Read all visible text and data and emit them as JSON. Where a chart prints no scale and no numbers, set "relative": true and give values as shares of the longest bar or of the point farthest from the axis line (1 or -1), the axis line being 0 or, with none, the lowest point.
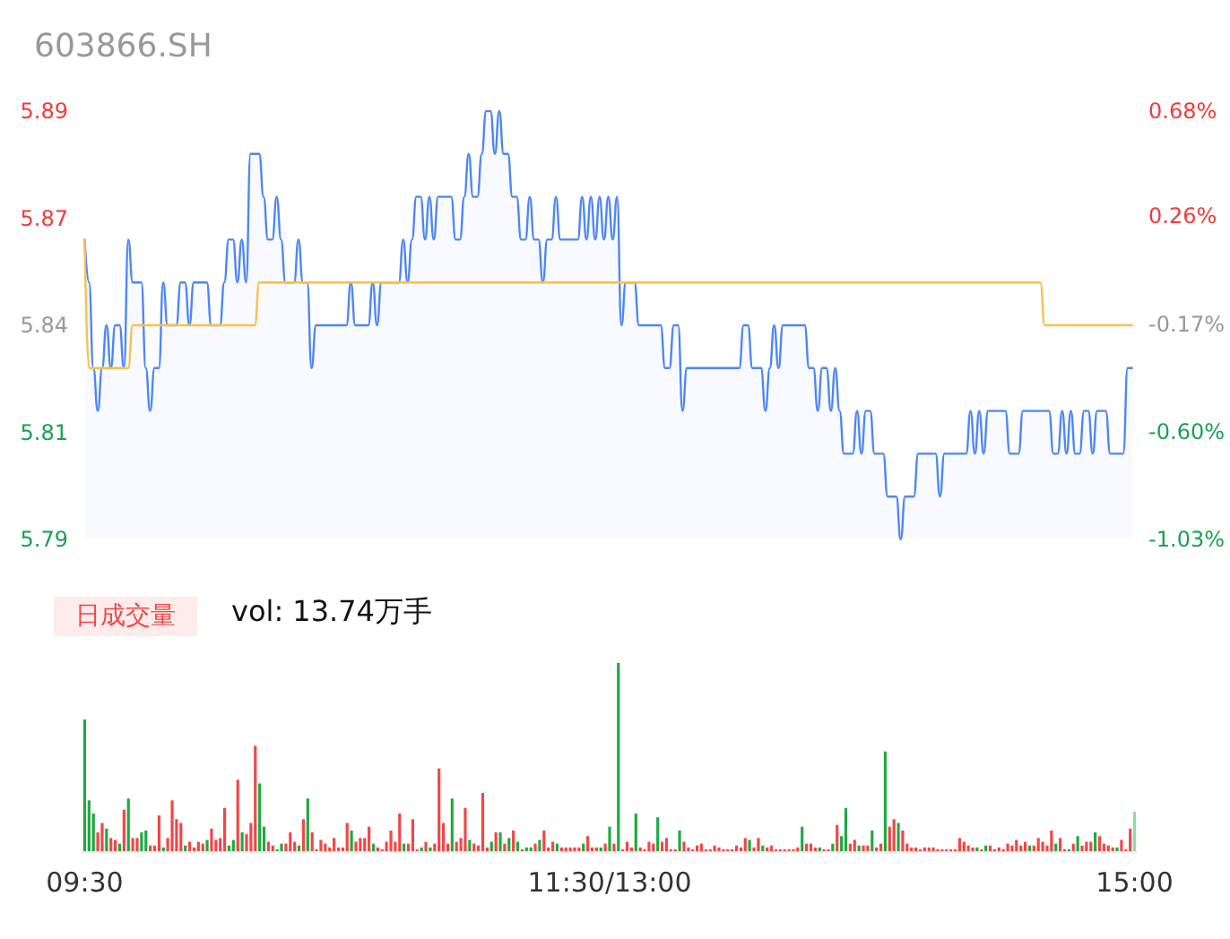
{
  "chart_data": [
    {
      "type": "line",
      "title": "603866.SH",
      "grid": false,
      "line_style": "solid",
      "categories": [
        null,
        null,
        null,
        null,
        null,
        null,
        null,
        null,
        null,
        null,
        null,
        null,
        null,
        null,
        null,
        null,
        null,
        null,
        null,
        null,
        null,
        null,
        null,
        null,
        null,
        null,
        null,
        null,
        null,
        null,
        null,
        null,
        null,
        null,
        null,
        null,
        null,
        null,
        null,
        null,
        null,
        null,
        null,
        null,
        null,
        null,
        null,
        null,
        null,
        null,
        null,
        null,
        null,
        null,
        null,
        null,
        null,
        null,
        null,
        null,
        null,
        null,
        null,
        null,
        null,
        null,
        null,
        null,
        null,
        null,
        null,
        null,
        null,
        null,
        null,
        null,
        null,
        null,
        null,
        null,
        null,
        null,
        null,
        null,
        null,
        null,
        null,
        null,
        null,
        null,
        null,
        null,
        null,
        null,
        null,
        null,
        null,
        null,
        null,
        null,
        null,
        null,
        null,
        null,
        null,
        null,
        null,
        null,
        null,
        null,
        null,
        null,
        null,
        null,
        null,
        null,
        null,
        null,
        null,
        null,
        null,
        null,
        null,
        null,
        null,
        null,
        null,
        null,
        null,
        null,
        null,
        null,
        null,
        null,
        null,
        null,
        null,
        null,
        null,
        null,
        null,
        null,
        null,
        null,
        null,
        null,
        null,
        null,
        null,
        null,
        null,
        null,
        null,
        null,
        null,
        null,
        null,
        null,
        null,
        null,
        null,
        null,
        null,
        null,
        null,
        null,
        null,
        null,
        null,
        null,
        null,
        null,
        null,
        null,
        null,
        null,
        null,
        null,
        null,
        null,
        null,
        null,
        null,
        null,
        null,
        null,
        null,
        null,
        null,
        null,
        null,
        null,
        null,
        null,
        null,
        null,
        null,
        null,
        null,
        null,
        null,
        null,
        null,
        null,
        null,
        null,
        null,
        null,
        null,
        null,
        null,
        null,
        null,
        null,
        null,
        null,
        null,
        null,
        null,
        null,
        null,
        null,
        null,
        null,
        null,
        null,
        null,
        null,
        null,
        null,
        null,
        null,
        null,
        null,
        null,
        null,
        null,
        null,
        null,
        null,
        null
      ],
      "ylim": [
        5.79,
        5.89
      ],
      "yticks": [
        {
          "value": 5.79,
          "label": "5.79"
        },
        {
          "value": 5.815,
          "label": "5.81"
        },
        {
          "value": 5.84,
          "label": "5.84"
        },
        {
          "value": 5.865,
          "label": "5.87"
        },
        {
          "value": 5.89,
          "label": "5.89"
        }
      ],
      "y2lim": [
        -1.03,
        0.68
      ],
      "y2ticks": [
        {
          "value": -1.03,
          "label": "-1.03%"
        },
        {
          "value": -0.6,
          "label": "-0.60%"
        },
        {
          "value": -0.17,
          "label": "-0.17%"
        },
        {
          "value": 0.26,
          "label": "0.26%"
        },
        {
          "value": 0.68,
          "label": "0.68%"
        }
      ],
      "series": [
        {
          "type": "area",
          "color": "#4e86f7",
          "values": [
            5.86,
            5.85,
            5.83,
            5.82,
            5.83,
            5.84,
            5.83,
            5.84,
            5.84,
            5.83,
            5.86,
            5.85,
            5.85,
            5.85,
            5.83,
            5.82,
            5.83,
            5.83,
            5.85,
            5.84,
            5.84,
            5.84,
            5.85,
            5.85,
            5.84,
            5.85,
            5.85,
            5.85,
            5.85,
            5.84,
            5.84,
            5.84,
            5.85,
            5.86,
            5.86,
            5.85,
            5.86,
            5.85,
            5.88,
            5.88,
            5.88,
            5.87,
            5.86,
            5.86,
            5.87,
            5.86,
            5.85,
            5.85,
            5.85,
            5.86,
            5.85,
            5.85,
            5.83,
            5.84,
            5.84,
            5.84,
            5.84,
            5.84,
            5.84,
            5.84,
            5.84,
            5.85,
            5.84,
            5.84,
            5.84,
            5.84,
            5.85,
            5.84,
            5.85,
            5.85,
            5.85,
            5.85,
            5.85,
            5.86,
            5.85,
            5.86,
            5.87,
            5.87,
            5.86,
            5.87,
            5.86,
            5.87,
            5.87,
            5.87,
            5.87,
            5.86,
            5.86,
            5.87,
            5.88,
            5.87,
            5.87,
            5.88,
            5.89,
            5.89,
            5.88,
            5.89,
            5.88,
            5.88,
            5.87,
            5.87,
            5.86,
            5.86,
            5.87,
            5.86,
            5.86,
            5.85,
            5.86,
            5.86,
            5.87,
            5.86,
            5.86,
            5.86,
            5.86,
            5.86,
            5.87,
            5.86,
            5.87,
            5.86,
            5.87,
            5.86,
            5.87,
            5.86,
            5.87,
            5.84,
            5.85,
            5.85,
            5.85,
            5.84,
            5.84,
            5.84,
            5.84,
            5.84,
            5.84,
            5.83,
            5.83,
            5.84,
            5.84,
            5.82,
            5.83,
            5.83,
            5.83,
            5.83,
            5.83,
            5.83,
            5.83,
            5.83,
            5.83,
            5.83,
            5.83,
            5.83,
            5.83,
            5.84,
            5.84,
            5.83,
            5.83,
            5.83,
            5.82,
            5.83,
            5.84,
            5.83,
            5.84,
            5.84,
            5.84,
            5.84,
            5.84,
            5.84,
            5.83,
            5.83,
            5.82,
            5.83,
            5.83,
            5.82,
            5.83,
            5.82,
            5.81,
            5.81,
            5.81,
            5.82,
            5.81,
            5.82,
            5.82,
            5.81,
            5.81,
            5.81,
            5.8,
            5.8,
            5.8,
            5.79,
            5.8,
            5.8,
            5.8,
            5.81,
            5.81,
            5.81,
            5.81,
            5.81,
            5.8,
            5.81,
            5.81,
            5.81,
            5.81,
            5.81,
            5.81,
            5.82,
            5.81,
            5.82,
            5.81,
            5.82,
            5.82,
            5.82,
            5.82,
            5.82,
            5.81,
            5.81,
            5.81,
            5.82,
            5.82,
            5.82,
            5.82,
            5.82,
            5.82,
            5.82,
            5.81,
            5.81,
            5.82,
            5.81,
            5.82,
            5.81,
            5.81,
            5.82,
            5.82,
            5.81,
            5.82,
            5.82,
            5.82,
            5.81,
            5.81,
            5.81,
            5.81,
            5.83,
            5.83
          ]
        },
        {
          "type": "line",
          "color": "#f8c248",
          "values": [
            5.86,
            5.83,
            5.83,
            5.83,
            5.83,
            5.83,
            5.83,
            5.83,
            5.83,
            5.83,
            5.83,
            5.84,
            5.84,
            5.84,
            5.84,
            5.84,
            5.84,
            5.84,
            5.84,
            5.84,
            5.84,
            5.84,
            5.84,
            5.84,
            5.84,
            5.84,
            5.84,
            5.84,
            5.84,
            5.84,
            5.84,
            5.84,
            5.84,
            5.84,
            5.84,
            5.84,
            5.84,
            5.84,
            5.84,
            5.84,
            5.85,
            5.85,
            5.85,
            5.85,
            5.85,
            5.85,
            5.85,
            5.85,
            5.85,
            5.85,
            5.85,
            5.85,
            5.85,
            5.85,
            5.85,
            5.85,
            5.85,
            5.85,
            5.85,
            5.85,
            5.85,
            5.85,
            5.85,
            5.85,
            5.85,
            5.85,
            5.85,
            5.85,
            5.85,
            5.85,
            5.85,
            5.85,
            5.85,
            5.85,
            5.85,
            5.85,
            5.85,
            5.85,
            5.85,
            5.85,
            5.85,
            5.85,
            5.85,
            5.85,
            5.85,
            5.85,
            5.85,
            5.85,
            5.85,
            5.85,
            5.85,
            5.85,
            5.85,
            5.85,
            5.85,
            5.85,
            5.85,
            5.85,
            5.85,
            5.85,
            5.85,
            5.85,
            5.85,
            5.85,
            5.85,
            5.85,
            5.85,
            5.85,
            5.85,
            5.85,
            5.85,
            5.85,
            5.85,
            5.85,
            5.85,
            5.85,
            5.85,
            5.85,
            5.85,
            5.85,
            5.85,
            5.85,
            5.85,
            5.85,
            5.85,
            5.85,
            5.85,
            5.85,
            5.85,
            5.85,
            5.85,
            5.85,
            5.85,
            5.85,
            5.85,
            5.85,
            5.85,
            5.85,
            5.85,
            5.85,
            5.85,
            5.85,
            5.85,
            5.85,
            5.85,
            5.85,
            5.85,
            5.85,
            5.85,
            5.85,
            5.85,
            5.85,
            5.85,
            5.85,
            5.85,
            5.85,
            5.85,
            5.85,
            5.85,
            5.85,
            5.85,
            5.85,
            5.85,
            5.85,
            5.85,
            5.85,
            5.85,
            5.85,
            5.85,
            5.85,
            5.85,
            5.85,
            5.85,
            5.85,
            5.85,
            5.85,
            5.85,
            5.85,
            5.85,
            5.85,
            5.85,
            5.85,
            5.85,
            5.85,
            5.85,
            5.85,
            5.85,
            5.85,
            5.85,
            5.85,
            5.85,
            5.85,
            5.85,
            5.85,
            5.85,
            5.85,
            5.85,
            5.85,
            5.85,
            5.85,
            5.85,
            5.85,
            5.85,
            5.85,
            5.85,
            5.85,
            5.85,
            5.85,
            5.85,
            5.85,
            5.85,
            5.85,
            5.85,
            5.85,
            5.85,
            5.85,
            5.85,
            5.85,
            5.85,
            5.85,
            5.84,
            5.84,
            5.84,
            5.84,
            5.84,
            5.84,
            5.84,
            5.84,
            5.84,
            5.84,
            5.84,
            5.84,
            5.84,
            5.84,
            5.84,
            5.84,
            5.84,
            5.84,
            5.84,
            5.84,
            5.84
          ]
        }
      ]
    },
    {
      "type": "bar",
      "relative": true,
      "grid": false,
      "tick_labels": "x",
      "annotations": [
        "日成交量",
        "vol: 13.74万手"
      ],
      "categories": [
        "09:30",
        null,
        null,
        null,
        null,
        null,
        null,
        null,
        null,
        null,
        null,
        null,
        null,
        null,
        null,
        null,
        null,
        null,
        null,
        null,
        null,
        null,
        null,
        null,
        null,
        null,
        null,
        null,
        null,
        null,
        null,
        null,
        null,
        null,
        null,
        null,
        null,
        null,
        null,
        null,
        null,
        null,
        null,
        null,
        null,
        null,
        null,
        null,
        null,
        null,
        null,
        null,
        null,
        null,
        null,
        null,
        null,
        null,
        null,
        null,
        null,
        null,
        null,
        null,
        null,
        null,
        null,
        null,
        null,
        null,
        null,
        null,
        null,
        null,
        null,
        null,
        null,
        null,
        null,
        null,
        null,
        null,
        null,
        null,
        null,
        null,
        null,
        null,
        null,
        null,
        null,
        null,
        null,
        null,
        null,
        null,
        null,
        null,
        null,
        null,
        null,
        null,
        null,
        null,
        null,
        null,
        null,
        null,
        null,
        null,
        null,
        null,
        null,
        null,
        null,
        null,
        null,
        null,
        null,
        null,
        "11:30/13:00",
        null,
        null,
        null,
        null,
        null,
        null,
        null,
        null,
        null,
        null,
        null,
        null,
        null,
        null,
        null,
        null,
        null,
        null,
        null,
        null,
        null,
        null,
        null,
        null,
        null,
        null,
        null,
        null,
        null,
        null,
        null,
        null,
        null,
        null,
        null,
        null,
        null,
        null,
        null,
        null,
        null,
        null,
        null,
        null,
        null,
        null,
        null,
        null,
        null,
        null,
        null,
        null,
        null,
        null,
        null,
        null,
        null,
        null,
        null,
        null,
        null,
        null,
        null,
        null,
        null,
        null,
        null,
        null,
        null,
        null,
        null,
        null,
        null,
        null,
        null,
        null,
        null,
        null,
        null,
        null,
        null,
        null,
        null,
        null,
        null,
        null,
        null,
        null,
        null,
        null,
        null,
        null,
        null,
        null,
        null,
        null,
        null,
        null,
        null,
        null,
        null,
        null,
        null,
        null,
        null,
        null,
        null,
        null,
        null,
        null,
        null,
        null,
        null,
        null,
        null,
        null,
        null,
        null,
        null,
        "15:00"
      ],
      "values": [
        0.7,
        0.27,
        0.2,
        0.1,
        0.15,
        0.12,
        0.07,
        0.06,
        0.04,
        0.22,
        0.28,
        0.07,
        0.07,
        0.1,
        0.11,
        0.03,
        0.03,
        0.19,
        0.02,
        0.07,
        0.27,
        0.17,
        0.15,
        0.03,
        0.05,
        0.02,
        0.05,
        0.04,
        0.06,
        0.12,
        0.06,
        0.07,
        0.23,
        0.03,
        0.06,
        0.38,
        0.1,
        0.09,
        0.15,
        0.56,
        0.36,
        0.13,
        0.05,
        0.03,
        0.01,
        0.04,
        0.04,
        0.1,
        0.05,
        0.03,
        0.17,
        0.28,
        0.1,
        0.01,
        0.06,
        0.04,
        0.02,
        0.07,
        0.02,
        0.02,
        0.15,
        0.11,
        0.05,
        0.07,
        0.07,
        0.13,
        0.04,
        0.02,
        0.01,
        0.05,
        0.11,
        0.05,
        0.2,
        0.04,
        0.04,
        0.17,
        0.01,
        0.02,
        0.05,
        0.02,
        0.04,
        0.44,
        0.15,
        0.04,
        0.28,
        0.05,
        0.07,
        0.23,
        0.06,
        0.04,
        0.03,
        0.31,
        0.02,
        0.05,
        0.1,
        0.1,
        0.04,
        0.07,
        0.11,
        0.05,
        0.01,
        0.02,
        0.02,
        0.04,
        0.06,
        0.11,
        0.02,
        0.05,
        0.04,
        0.02,
        0.02,
        0.02,
        0.02,
        0.02,
        0.04,
        0.08,
        0.02,
        0.02,
        0.02,
        0.04,
        0.13,
        0.04,
        1,
        0.01,
        0.05,
        0.02,
        0.2,
        0.02,
        0.01,
        0.05,
        0.04,
        0.18,
        0.05,
        0.07,
        0.01,
        0.01,
        0.11,
        0.05,
        0.02,
        0.01,
        0.03,
        0.04,
        0.01,
        0.01,
        0.03,
        0.02,
        0.01,
        0.01,
        0.01,
        0.03,
        0.02,
        0.07,
        0.06,
        0.02,
        0.07,
        0.03,
        0.02,
        0.03,
        0.01,
        0.01,
        0.01,
        0.01,
        0.01,
        0.02,
        0.13,
        0.04,
        0.04,
        0.02,
        0.02,
        0.01,
        0.01,
        0.04,
        0.14,
        0.08,
        0.23,
        0.04,
        0.06,
        0.03,
        0.03,
        0.03,
        0.11,
        0.02,
        0.04,
        0.53,
        0.13,
        0.17,
        0.15,
        0.11,
        0.04,
        0.02,
        0.02,
        0.01,
        0.02,
        0.02,
        0.02,
        0.01,
        0.01,
        0.01,
        0.01,
        0.01,
        0.07,
        0.05,
        0.03,
        0.02,
        0.02,
        0.01,
        0.03,
        0.03,
        0.01,
        0.02,
        0.01,
        0.04,
        0.03,
        0.06,
        0.03,
        0.05,
        0.03,
        0.03,
        0.07,
        0.05,
        0.03,
        0.11,
        0.04,
        0.07,
        0.01,
        0.01,
        0.04,
        0.08,
        0.03,
        0.05,
        0.05,
        0.1,
        0.08,
        0.04,
        0.03,
        0.02,
        0.02,
        0.06,
        0.01,
        0.12,
        0.21
      ],
      "colors": [
        "#1daa3f",
        "#1daa3f",
        "#1daa3f",
        "#f54545",
        "#f54545",
        "#1daa3f",
        "#f54545",
        "#f54545",
        "#1daa3f",
        "#f54545",
        "#1daa3f",
        "#f54545",
        "#f54545",
        "#1daa3f",
        "#1daa3f",
        "#f54545",
        "#f54545",
        "#f54545",
        "#1daa3f",
        "#f54545",
        "#f54545",
        "#f54545",
        "#f54545",
        "#1daa3f",
        "#f54545",
        "#f54545",
        "#f54545",
        "#f54545",
        "#1daa3f",
        "#f54545",
        "#f54545",
        "#f54545",
        "#f54545",
        "#1daa3f",
        "#1daa3f",
        "#f54545",
        "#1daa3f",
        "#f54545",
        "#f54545",
        "#f54545",
        "#1daa3f",
        "#1daa3f",
        "#f54545",
        "#f54545",
        "#1daa3f",
        "#1daa3f",
        "#f54545",
        "#f54545",
        "#f54545",
        "#1daa3f",
        "#f54545",
        "#1daa3f",
        "#f54545",
        "#f54545",
        "#f54545",
        "#f54545",
        "#f54545",
        "#f54545",
        "#f54545",
        "#f54545",
        "#f54545",
        "#1daa3f",
        "#f54545",
        "#f54545",
        "#f54545",
        "#f54545",
        "#1daa3f",
        "#f54545",
        "#f54545",
        "#f54545",
        "#f54545",
        "#f54545",
        "#f54545",
        "#1daa3f",
        "#f54545",
        "#f54545",
        "#f54545",
        "#1daa3f",
        "#f54545",
        "#1daa3f",
        "#f54545",
        "#f54545",
        "#f54545",
        "#f54545",
        "#1daa3f",
        "#f54545",
        "#f54545",
        "#f54545",
        "#1daa3f",
        "#f54545",
        "#f54545",
        "#f54545",
        "#f54545",
        "#1daa3f",
        "#f54545",
        "#1daa3f",
        "#f54545",
        "#1daa3f",
        "#f54545",
        "#1daa3f",
        "#f54545",
        "#1daa3f",
        "#1daa3f",
        "#f54545",
        "#1daa3f",
        "#f54545",
        "#f54545",
        "#f54545",
        "#1daa3f",
        "#f54545",
        "#f54545",
        "#f54545",
        "#f54545",
        "#f54545",
        "#1daa3f",
        "#f54545",
        "#f54545",
        "#f54545",
        "#1daa3f",
        "#f54545",
        "#1daa3f",
        "#f54545",
        "#1daa3f",
        "#f54545",
        "#f54545",
        "#f54545",
        "#1daa3f",
        "#f54545",
        "#f54545",
        "#f54545",
        "#f54545",
        "#1daa3f",
        "#f54545",
        "#f54545",
        "#f54545",
        "#f54545",
        "#1daa3f",
        "#f54545",
        "#f54545",
        "#f54545",
        "#f54545",
        "#f54545",
        "#f54545",
        "#f54545",
        "#f54545",
        "#f54545",
        "#f54545",
        "#f54545",
        "#f54545",
        "#f54545",
        "#f54545",
        "#f54545",
        "#1daa3f",
        "#f54545",
        "#f54545",
        "#1daa3f",
        "#f54545",
        "#f54545",
        "#f54545",
        "#f54545",
        "#f54545",
        "#f54545",
        "#f54545",
        "#f54545",
        "#1daa3f",
        "#f54545",
        "#f54545",
        "#f54545",
        "#1daa3f",
        "#f54545",
        "#f54545",
        "#1daa3f",
        "#f54545",
        "#1daa3f",
        "#1daa3f",
        "#f54545",
        "#f54545",
        "#1daa3f",
        "#f54545",
        "#f54545",
        "#1daa3f",
        "#f54545",
        "#f54545",
        "#1daa3f",
        "#f54545",
        "#f54545",
        "#1daa3f",
        "#f54545",
        "#f54545",
        "#f54545",
        "#f54545",
        "#f54545",
        "#f54545",
        "#f54545",
        "#f54545",
        "#f54545",
        "#f54545",
        "#f54545",
        "#f54545",
        "#f54545",
        "#f54545",
        "#f54545",
        "#f54545",
        "#f54545",
        "#1daa3f",
        "#f54545",
        "#1daa3f",
        "#f54545",
        "#f54545",
        "#f54545",
        "#f54545",
        "#f54545",
        "#f54545",
        "#f54545",
        "#f54545",
        "#f54545",
        "#1daa3f",
        "#f54545",
        "#f54545",
        "#f54545",
        "#f54545",
        "#f54545",
        "#1daa3f",
        "#f54545",
        "#f54545",
        "#1daa3f",
        "#f54545",
        "#1daa3f",
        "#f54545",
        "#f54545",
        "#f54545",
        "#1daa3f",
        "#f54545",
        "#f54545",
        "#f54545",
        "#f54545",
        "#1daa3f",
        "#f54545",
        "#f54545",
        "#f54545",
        "#8fdc9f"
      ]
    }
  ]
}
